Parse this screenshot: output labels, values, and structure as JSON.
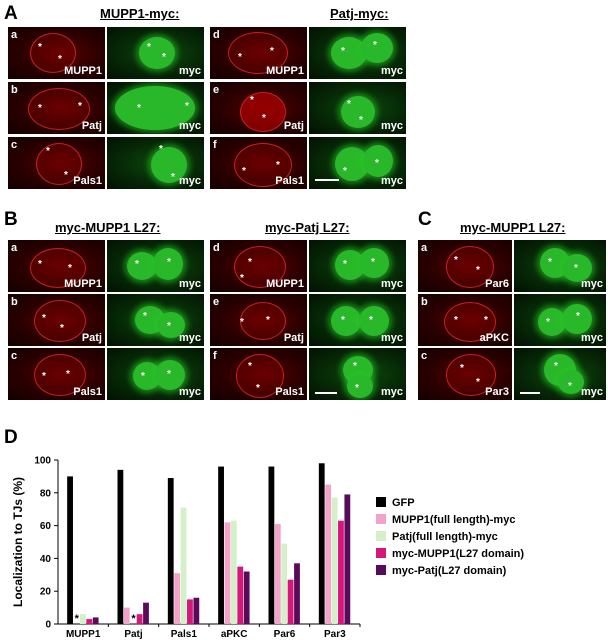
{
  "panelA": {
    "label": "A",
    "left_title": "MUPP1-myc:",
    "right_title": "Patj-myc:",
    "rows": [
      {
        "letter": "a",
        "stain": "MUPP1",
        "channel": "myc"
      },
      {
        "letter": "b",
        "stain": "Patj",
        "channel": "myc"
      },
      {
        "letter": "c",
        "stain": "Pals1",
        "channel": "myc"
      },
      {
        "letter": "d",
        "stain": "MUPP1",
        "channel": "myc"
      },
      {
        "letter": "e",
        "stain": "Patj",
        "channel": "myc"
      },
      {
        "letter": "f",
        "stain": "Pals1",
        "channel": "myc"
      }
    ]
  },
  "panelB": {
    "label": "B",
    "left_title": "myc-MUPP1 L27:",
    "right_title": "myc-Patj L27:",
    "rows": [
      {
        "letter": "a",
        "stain": "MUPP1",
        "channel": "myc"
      },
      {
        "letter": "b",
        "stain": "Patj",
        "channel": "myc"
      },
      {
        "letter": "c",
        "stain": "Pals1",
        "channel": "myc"
      },
      {
        "letter": "d",
        "stain": "MUPP1",
        "channel": "myc"
      },
      {
        "letter": "e",
        "stain": "Patj",
        "channel": "myc"
      },
      {
        "letter": "f",
        "stain": "Pals1",
        "channel": "myc"
      }
    ]
  },
  "panelC": {
    "label": "C",
    "title": "myc-MUPP1 L27:",
    "rows": [
      {
        "letter": "a",
        "stain": "Par6",
        "channel": "myc"
      },
      {
        "letter": "b",
        "stain": "aPKC",
        "channel": "myc"
      },
      {
        "letter": "c",
        "stain": "Par3",
        "channel": "myc"
      }
    ]
  },
  "panelD": {
    "label": "D",
    "markers": {
      "star": "*"
    },
    "chart_data": {
      "type": "bar",
      "categories": [
        "MUPP1",
        "Patj",
        "Pals1",
        "aPKC",
        "Par6",
        "Par3"
      ],
      "ylabel": "Localization to TJs (%)",
      "xlabel": "",
      "ylim": [
        0,
        100
      ],
      "yticks": [
        0,
        20,
        40,
        60,
        80,
        100
      ],
      "grid": false,
      "legend_position": "right",
      "series": [
        {
          "name": "GFP",
          "color": "#000000",
          "values": [
            90,
            94,
            89,
            96,
            96,
            98
          ]
        },
        {
          "name": "MUPP1(full length)-myc",
          "color": "#f4a3c8",
          "values": [
            0,
            10,
            31,
            62,
            61,
            85
          ]
        },
        {
          "name": "Patj(full length)-myc",
          "color": "#d4f0c8",
          "values": [
            6,
            0,
            71,
            63,
            49,
            77
          ]
        },
        {
          "name": "myc-MUPP1(L27 domain)",
          "color": "#d6177a",
          "values": [
            3,
            6,
            15,
            35,
            27,
            63
          ]
        },
        {
          "name": "myc-Patj(L27 domain)",
          "color": "#5a0a5a",
          "values": [
            4,
            13,
            16,
            32,
            37,
            79
          ]
        }
      ],
      "annotations": [
        {
          "category": "MUPP1",
          "series": "MUPP1(full length)-myc",
          "text": "*"
        },
        {
          "category": "Patj",
          "series": "Patj(full length)-myc",
          "text": "*"
        }
      ]
    }
  }
}
